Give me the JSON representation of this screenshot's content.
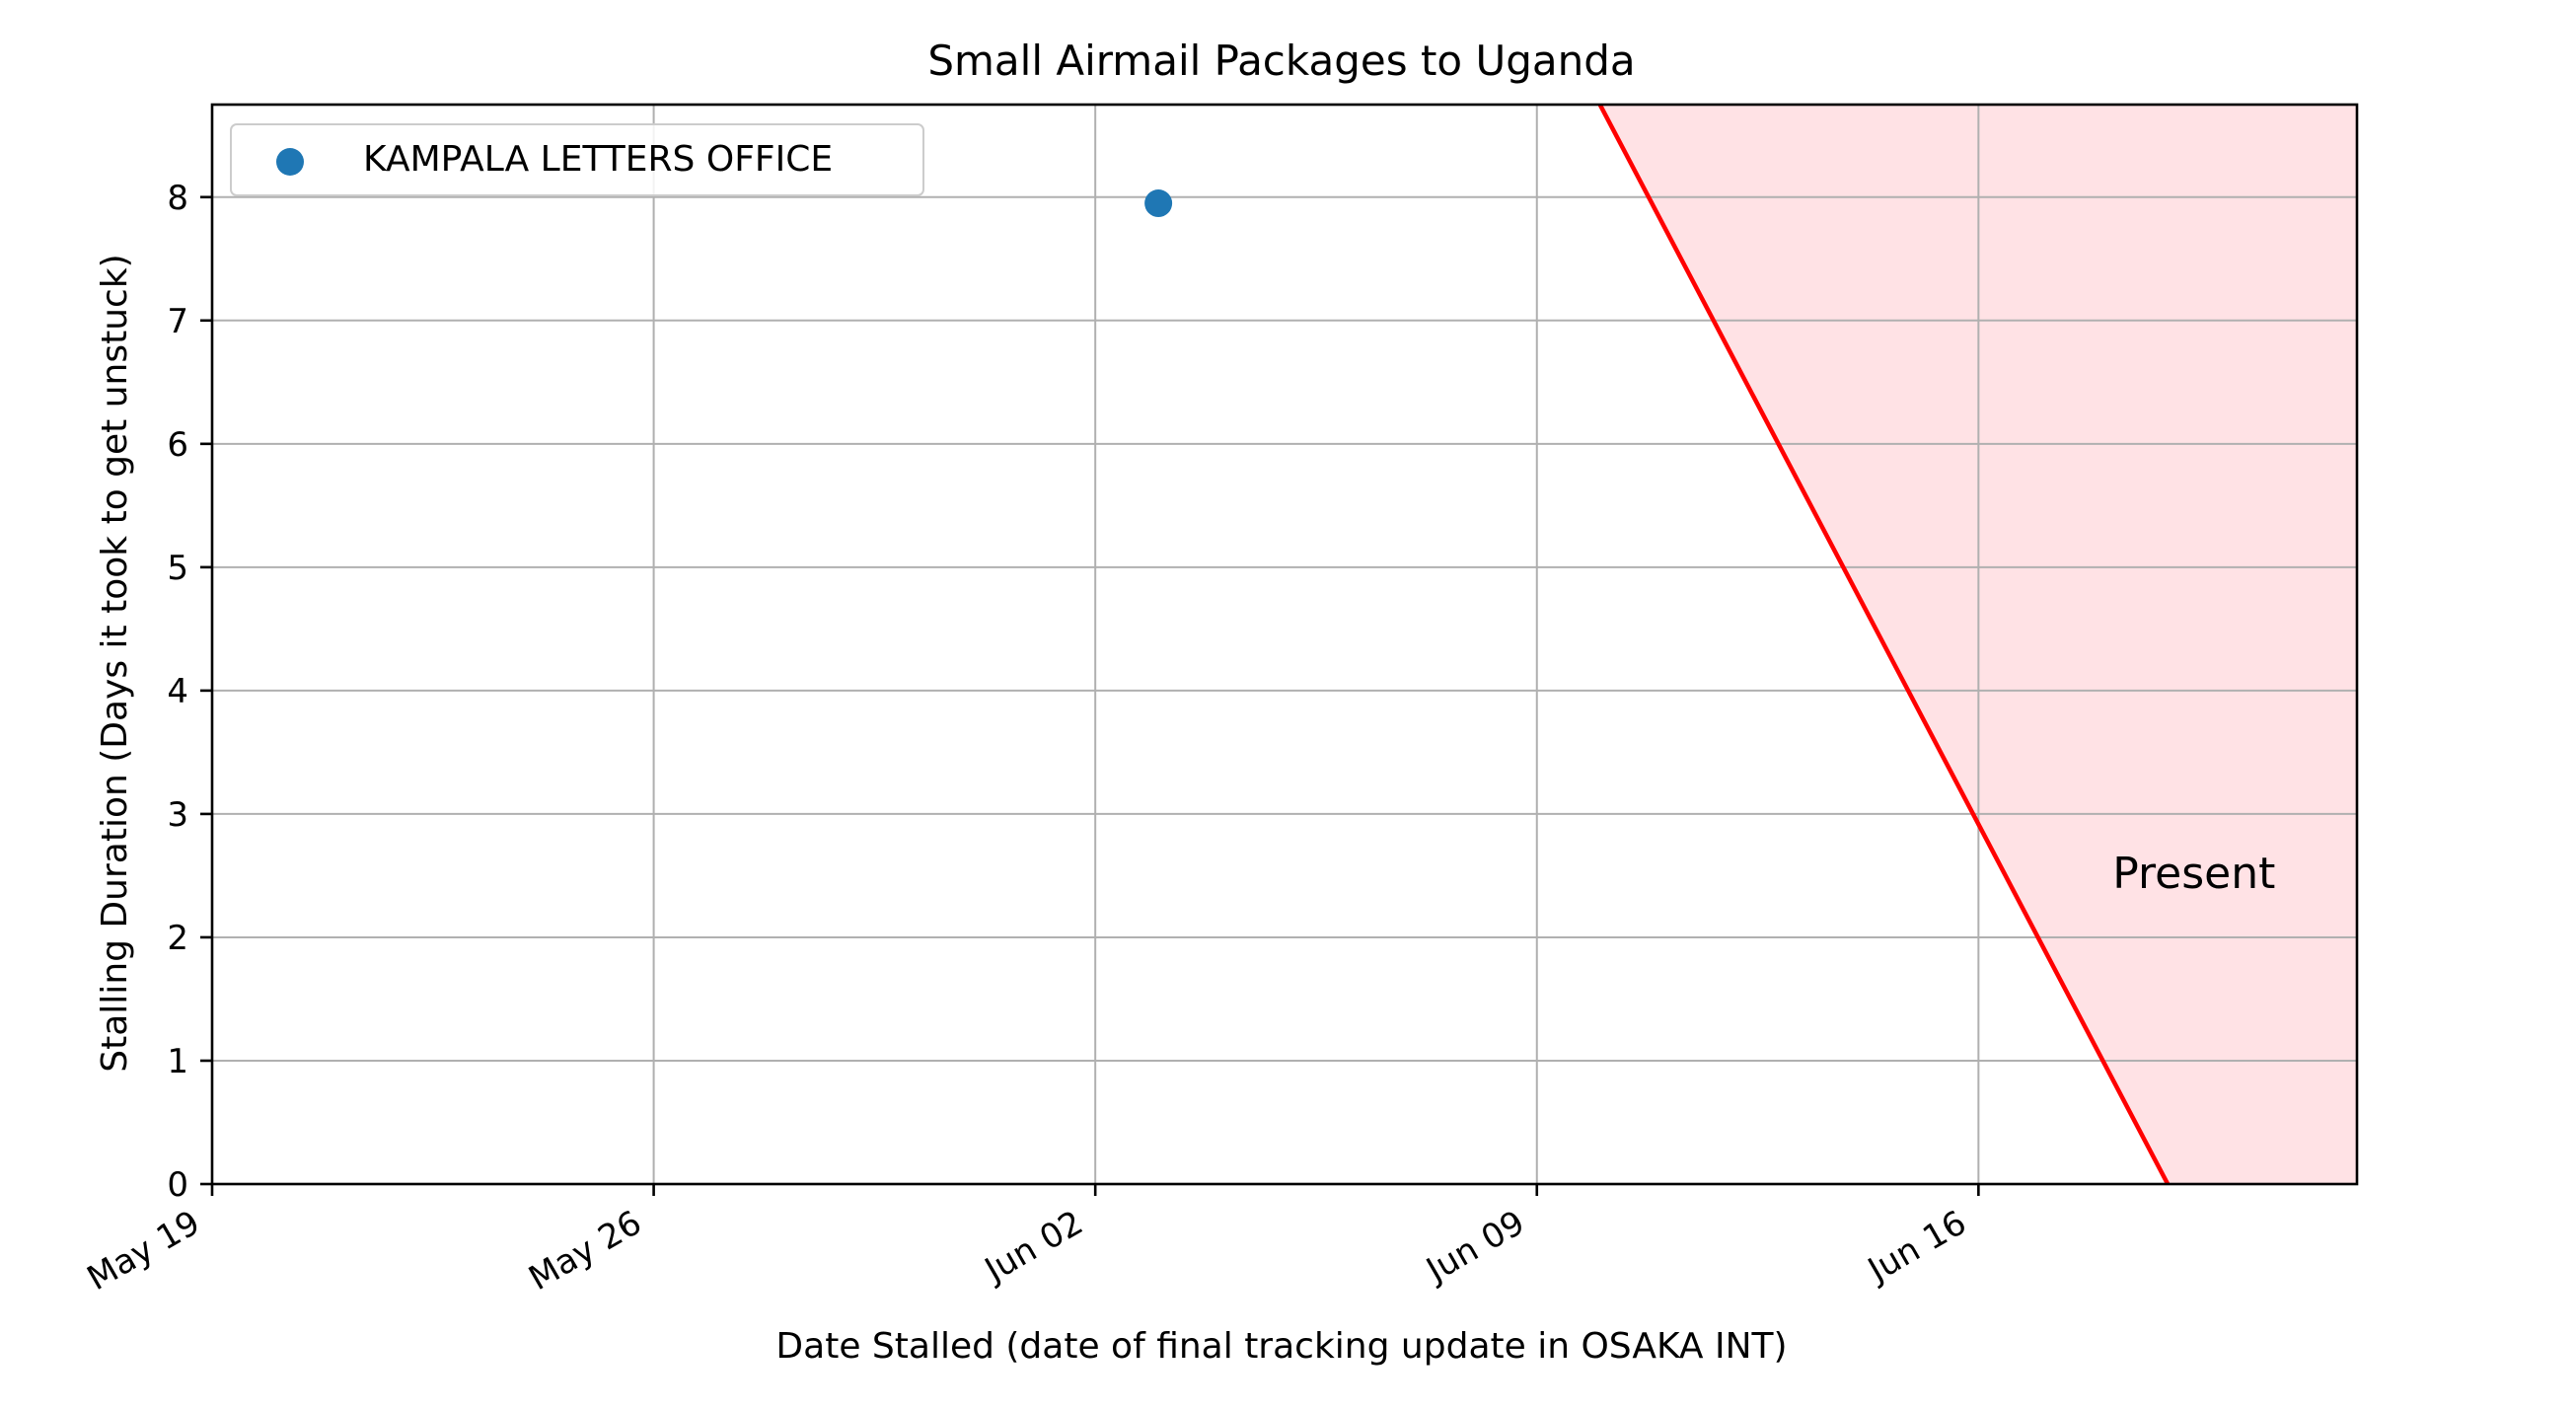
{
  "chart_data": {
    "type": "scatter",
    "title": "Small Airmail Packages to Uganda",
    "xlabel": "Date Stalled (date of final tracking update in OSAKA INT)",
    "ylabel": "Stalling Duration (Days it took to get unstuck)",
    "x_type": "date",
    "xlim": [
      "2023-05-19",
      "2023-06-22"
    ],
    "ylim": [
      0,
      8.75
    ],
    "x_ticks": [
      "2023-05-19",
      "2023-05-26",
      "2023-06-02",
      "2023-06-09",
      "2023-06-16"
    ],
    "x_tick_labels": [
      "May 19",
      "May 26",
      "Jun 02",
      "Jun 09",
      "Jun 16"
    ],
    "y_ticks": [
      0,
      1,
      2,
      3,
      4,
      5,
      6,
      7,
      8
    ],
    "grid": true,
    "legend_position": "upper left",
    "series": [
      {
        "name": "KAMPALA LETTERS OFFICE",
        "color": "#1f77b4",
        "points": [
          {
            "x": "2023-06-03",
            "y": 7.95
          }
        ]
      }
    ],
    "present_line": {
      "label": "Present",
      "color": "#ff0000",
      "fill_color": "#ffe2e5",
      "points": [
        {
          "x": "2023-06-10",
          "y": 8.75
        },
        {
          "x": "2023-06-19",
          "y": 0
        }
      ],
      "label_anchor": {
        "x": "2023-06-17",
        "y": 2.4
      }
    }
  }
}
